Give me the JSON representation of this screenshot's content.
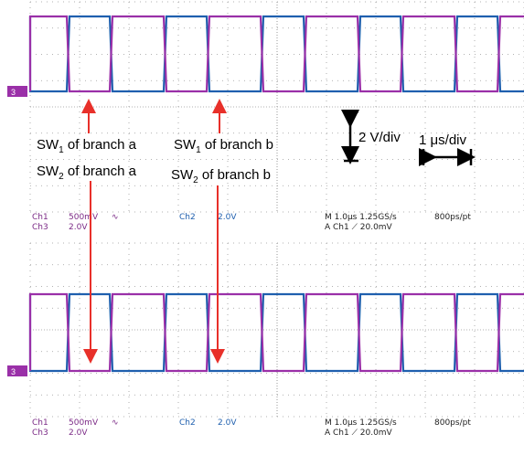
{
  "annotations": {
    "sw1a": {
      "prefix": "SW",
      "sub": "1",
      "rest": " of branch a"
    },
    "sw1b": {
      "prefix": "SW",
      "sub": "1",
      "rest": " of branch b"
    },
    "sw2a": {
      "prefix": "SW",
      "sub": "2",
      "rest": " of branch a"
    },
    "sw2b": {
      "prefix": "SW",
      "sub": "2",
      "rest": " of branch b"
    },
    "vdiv": "2 V/div",
    "tdiv": "1 μs/div"
  },
  "panels": [
    {
      "marker": "3",
      "readout": {
        "ch1": "Ch1",
        "ch1_scale": "500mV",
        "ch1_bw": "∿",
        "ch2": "Ch2",
        "ch2_scale": "2.0V",
        "ch3": "Ch3",
        "ch3_scale": "2.0V",
        "time": "M 1.0μs 1.25GS/s",
        "rate": "800ps/pt",
        "trigger": "A  Ch1  ⟋  20.0mV"
      }
    },
    {
      "marker": "3",
      "readout": {
        "ch1": "Ch1",
        "ch1_scale": "500mV",
        "ch1_bw": "∿",
        "ch2": "Ch2",
        "ch2_scale": "2.0V",
        "ch3": "Ch3",
        "ch3_scale": "2.0V",
        "time": "M 1.0μs 1.25GS/s",
        "rate": "800ps/pt",
        "trigger": "A  Ch1  ⟋  20.0mV"
      }
    }
  ]
}
